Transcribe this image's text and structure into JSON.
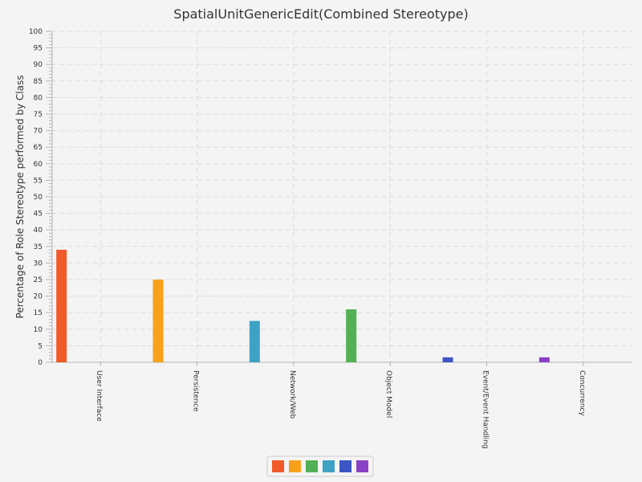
{
  "chart_data": {
    "type": "bar",
    "title": "SpatialUnitGenericEdit(Combined Stereotype)",
    "xlabel": "",
    "ylabel": "Percentage of Role Stereotype performed by Class",
    "ylim": [
      0,
      100
    ],
    "ytick_step": 5,
    "grid": true,
    "legend_position": "bottom-center",
    "categories": [
      "User Interface",
      "Persistence",
      "Network/Web",
      "Object Model",
      "Event/Event Handling",
      "Concurrency"
    ],
    "values": [
      34,
      25,
      12.5,
      16,
      1.5,
      1.5
    ],
    "colors": [
      "#f15a29",
      "#f9a11b",
      "#52b154",
      "#3ea2c4",
      "#3b55c4",
      "#8b3fc4"
    ],
    "bar_colors": [
      "#f15a29",
      "#f9a11b",
      "#3ea2c4",
      "#52b154",
      "#3b55c4",
      "#8b3fc4"
    ]
  }
}
